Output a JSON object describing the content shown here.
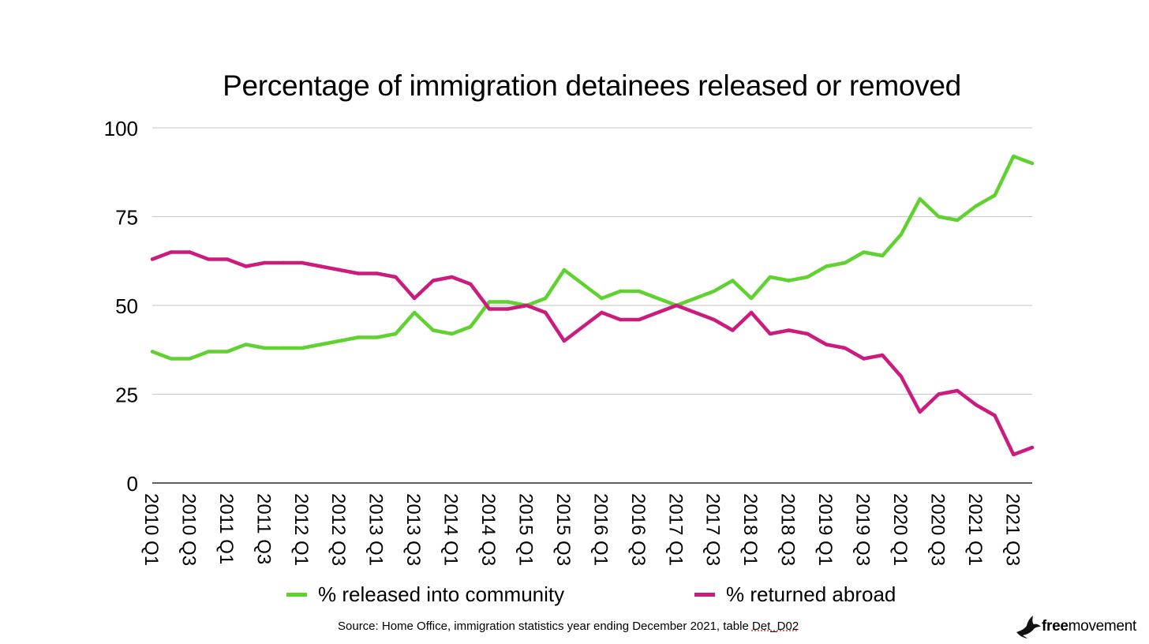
{
  "chart_data": {
    "type": "line",
    "title": "Percentage of immigration detainees released or removed",
    "ylim": [
      0,
      100
    ],
    "yticks": [
      0,
      25,
      50,
      75,
      100
    ],
    "grid": true,
    "legend_position": "bottom",
    "x": [
      "2010 Q1",
      "2010 Q2",
      "2010 Q3",
      "2010 Q4",
      "2011 Q1",
      "2011 Q2",
      "2011 Q3",
      "2011 Q4",
      "2012 Q1",
      "2012 Q2",
      "2012 Q3",
      "2012 Q4",
      "2013 Q1",
      "2013 Q2",
      "2013 Q3",
      "2013 Q4",
      "2014 Q1",
      "2014 Q2",
      "2014 Q3",
      "2014 Q4",
      "2015 Q1",
      "2015 Q2",
      "2015 Q3",
      "2015 Q4",
      "2016 Q1",
      "2016 Q2",
      "2016 Q3",
      "2016 Q4",
      "2017 Q1",
      "2017 Q2",
      "2017 Q3",
      "2017 Q4",
      "2018 Q1",
      "2018 Q2",
      "2018 Q3",
      "2018 Q4",
      "2019 Q1",
      "2019 Q2",
      "2019 Q3",
      "2019 Q4",
      "2020 Q1",
      "2020 Q2",
      "2020 Q3",
      "2020 Q4",
      "2021 Q1",
      "2021 Q2",
      "2021 Q3",
      "2021 Q4"
    ],
    "x_tick_labels": [
      "2010 Q1",
      "2010 Q3",
      "2011 Q1",
      "2011 Q3",
      "2012 Q1",
      "2012 Q3",
      "2013 Q1",
      "2013 Q3",
      "2014 Q1",
      "2014 Q3",
      "2015 Q1",
      "2015 Q3",
      "2016 Q1",
      "2016 Q3",
      "2017 Q1",
      "2017 Q3",
      "2018 Q1",
      "2018 Q3",
      "2019 Q1",
      "2019 Q3",
      "2020 Q1",
      "2020 Q3",
      "2021 Q1",
      "2021 Q3"
    ],
    "series": [
      {
        "name": "% released into community",
        "color": "#5fd22f",
        "values": [
          37,
          35,
          35,
          37,
          37,
          39,
          38,
          38,
          38,
          39,
          40,
          41,
          41,
          42,
          48,
          43,
          42,
          44,
          51,
          51,
          50,
          52,
          60,
          56,
          52,
          54,
          54,
          52,
          50,
          52,
          54,
          57,
          52,
          58,
          57,
          58,
          61,
          62,
          65,
          64,
          70,
          80,
          75,
          74,
          78,
          81,
          92,
          90
        ]
      },
      {
        "name": "% returned abroad",
        "color": "#cc1b7c",
        "values": [
          63,
          65,
          65,
          63,
          63,
          61,
          62,
          62,
          62,
          61,
          60,
          59,
          59,
          58,
          52,
          57,
          58,
          56,
          49,
          49,
          50,
          48,
          40,
          44,
          48,
          46,
          46,
          48,
          50,
          48,
          46,
          43,
          48,
          42,
          43,
          42,
          39,
          38,
          35,
          36,
          30,
          20,
          25,
          26,
          22,
          19,
          8,
          10
        ]
      }
    ]
  },
  "source_note": {
    "prefix": "Source: Home Office, immigration statistics year ending December 2021, table ",
    "table": "Det_D02"
  },
  "brand": {
    "bold": "free",
    "regular": "movement",
    "icon": "bird-logo-icon"
  }
}
